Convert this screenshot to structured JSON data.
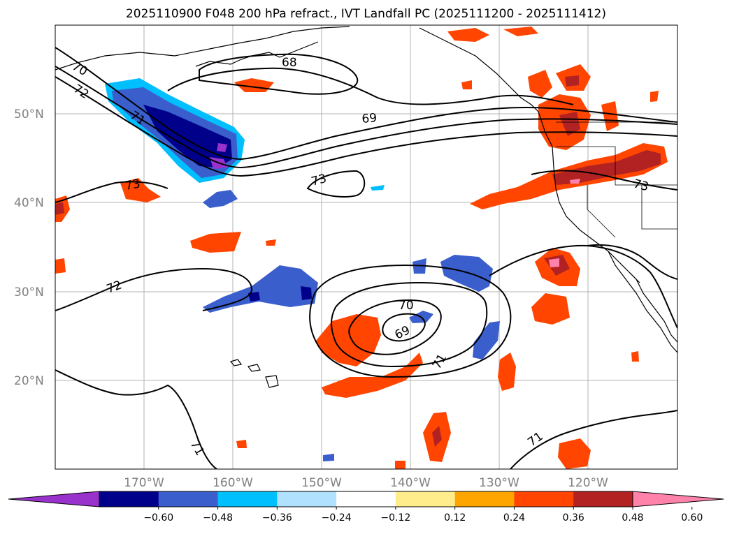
{
  "title": "2025110900 F048 200 hPa refract., IVT Landfall PC (2025111200 - 2025111412)",
  "lon_labels": [
    "170°W",
    "160°W",
    "150°W",
    "140°W",
    "130°W",
    "120°W"
  ],
  "lat_labels": [
    "50°N",
    "40°N",
    "30°N",
    "20°N"
  ],
  "contour_labels": [
    "70",
    "72",
    "71",
    "68",
    "69",
    "73",
    "73",
    "73",
    "72",
    "70",
    "69",
    "71",
    "71",
    "71"
  ],
  "colorbar": {
    "colors": [
      "#9932cc",
      "#00008b",
      "#3a5fcd",
      "#00bfff",
      "#b0e2ff",
      "#ffffff",
      "#ffec8b",
      "#ffa500",
      "#ff4500",
      "#b22222",
      "#ff82ab"
    ],
    "tick_labels": [
      "−0.60",
      "−0.48",
      "−0.36",
      "−0.24",
      "−0.12",
      "0.12",
      "0.24",
      "0.36",
      "0.48",
      "0.60"
    ]
  }
}
